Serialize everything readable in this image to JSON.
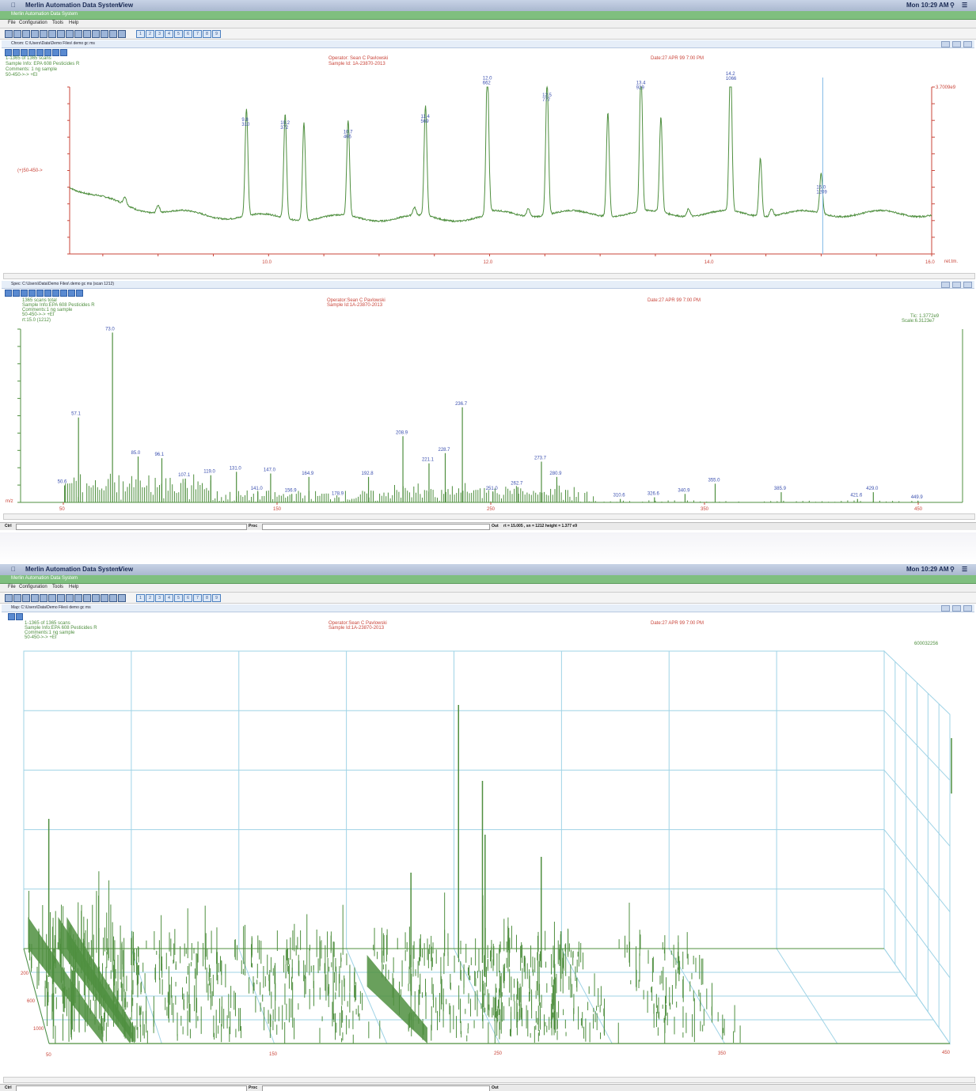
{
  "os_menubar": {
    "app_name": "Merlin Automation Data System",
    "menu_view": "View",
    "clock": "Mon 10:29 AM"
  },
  "app": {
    "title": "Merlin Automation Data System",
    "menus": [
      "File",
      "Configuration",
      "Tools",
      "Help"
    ],
    "toolbar_numbers": [
      "1",
      "2",
      "3",
      "4",
      "5",
      "6",
      "7",
      "8",
      "9"
    ]
  },
  "chrom_window": {
    "title": "Chrom: C:\\Users\\Data\\Demo Files\\ demo gc ms",
    "scans": "1-1365 of 1365 scans",
    "sample_info": "Sample Info: EPA 608 Pesticides R",
    "comments": "Comments: 1 ng sample",
    "range": "50-450->-> +EI",
    "operator": "Operator: Sean C Pavlowski",
    "sample_id": "Sample Id: 1A-23870-2013",
    "date": "Date:27 APR 99  7:00 PM",
    "y_label_left": "(+)50-450->",
    "y_label_right": "3.7009e9",
    "x_unit": "ret.tm."
  },
  "spec_window": {
    "title": "Spec: C:\\Users\\Data\\Demo Files\\ demo gc ms (scan 1212)",
    "scans": "1365 scans total",
    "sample_info": "Sample Info:EPA 608 Pesticides R",
    "comments": "Comments:1 ng sample",
    "range": "50-450->-> +EI",
    "rt": "rt:15.0 (1212)",
    "operator": "Operator:Sean C Pavlowski",
    "sample_id": "Sample Id:1A-23870-2013",
    "date": "Date:27 APR 99  7:00 PM",
    "tic": "Tic: 1.3772e9",
    "scale": "Scale:6.3123e7",
    "x_unit": "m/z"
  },
  "status_bar_1": {
    "ctrl": "Ctrl",
    "proc": "Proc",
    "out": "Out",
    "readout": "rt = 15.005 , sn = 1212 height = 1.377 e9"
  },
  "map_window": {
    "title": "Map: C:\\Users\\Data\\Demo Files\\ demo gc ms",
    "scans": "1-1365 of 1365 scans",
    "sample_info": "Sample Info:EPA 608 Pesticides R",
    "comments": "Comments:1 ng sample",
    "range": "50-450->-> +EI",
    "operator": "Operator:Sean C Pavlowski",
    "sample_id": "Sample Id:1A-23870-2013",
    "date": "Date:27 APR 99  7:00 PM",
    "z_max": "600032256",
    "y_ticks": [
      "200",
      "600",
      "1000"
    ],
    "x_ticks": [
      "50",
      "150",
      "250",
      "350",
      "450"
    ]
  },
  "status_bar_2": {
    "ctrl": "Ctrl",
    "proc": "Proc",
    "out": "Out"
  },
  "chart_data": [
    {
      "type": "line",
      "x_ticks": [
        "10.0",
        "12.0",
        "14.0",
        "16.0"
      ],
      "xlim": [
        8.2,
        16.0
      ],
      "peak_labels": [
        {
          "rt": "9.8",
          "scan": "310",
          "x": 9.8,
          "y": 0.7
        },
        {
          "rt": "10.2",
          "scan": "372",
          "x": 10.15,
          "y": 0.68
        },
        {
          "rt": "",
          "scan": "",
          "x": 10.32,
          "y": 0.64
        },
        {
          "rt": "10.7",
          "scan": "466",
          "x": 10.72,
          "y": 0.62
        },
        {
          "rt": "11.4",
          "scan": "569",
          "x": 11.42,
          "y": 0.72
        },
        {
          "rt": "12.0",
          "scan": "662",
          "x": 11.98,
          "y": 0.97
        },
        {
          "rt": "12.5",
          "scan": "777",
          "x": 12.52,
          "y": 0.86
        },
        {
          "rt": "",
          "scan": "",
          "x": 13.07,
          "y": 0.68
        },
        {
          "rt": "13.4",
          "scan": "929",
          "x": 13.37,
          "y": 0.94
        },
        {
          "rt": "",
          "scan": "",
          "x": 13.55,
          "y": 0.62
        },
        {
          "rt": "14.2",
          "scan": "1066",
          "x": 14.18,
          "y": 1.0
        },
        {
          "rt": "",
          "scan": "",
          "x": 14.45,
          "y": 0.38
        },
        {
          "rt": "15.0",
          "scan": "1209",
          "x": 15.0,
          "y": 0.26
        }
      ],
      "cursor_rt": 15.0
    },
    {
      "type": "bar",
      "x_ticks": [
        "50",
        "150",
        "250",
        "350",
        "450"
      ],
      "xlim": [
        50,
        455
      ],
      "labeled_peaks": [
        {
          "mz": 50.6,
          "label": "50.6",
          "rel": 0.1
        },
        {
          "mz": 57.1,
          "label": "57.1",
          "rel": 0.5
        },
        {
          "mz": 73.0,
          "label": "73.0",
          "rel": 1.0
        },
        {
          "mz": 85.0,
          "label": "85.0",
          "rel": 0.27
        },
        {
          "mz": 96.1,
          "label": "96.1",
          "rel": 0.26
        },
        {
          "mz": 107.1,
          "label": "107.1",
          "rel": 0.14
        },
        {
          "mz": 119.0,
          "label": "119.0",
          "rel": 0.16
        },
        {
          "mz": 131.0,
          "label": "131.0",
          "rel": 0.18
        },
        {
          "mz": 141.0,
          "label": "141.0",
          "rel": 0.06
        },
        {
          "mz": 147.0,
          "label": "147.0",
          "rel": 0.17
        },
        {
          "mz": 156.9,
          "label": "156.9",
          "rel": 0.05
        },
        {
          "mz": 164.9,
          "label": "164.9",
          "rel": 0.15
        },
        {
          "mz": 178.9,
          "label": "178.9",
          "rel": 0.03
        },
        {
          "mz": 192.8,
          "label": "192.8",
          "rel": 0.15
        },
        {
          "mz": 208.9,
          "label": "208.9",
          "rel": 0.39
        },
        {
          "mz": 221.1,
          "label": "221.1",
          "rel": 0.23
        },
        {
          "mz": 228.7,
          "label": "228.7",
          "rel": 0.29
        },
        {
          "mz": 236.7,
          "label": "236.7",
          "rel": 0.56
        },
        {
          "mz": 251.0,
          "label": "251.0",
          "rel": 0.06
        },
        {
          "mz": 262.7,
          "label": "262.7",
          "rel": 0.09
        },
        {
          "mz": 273.7,
          "label": "273.7",
          "rel": 0.24
        },
        {
          "mz": 280.9,
          "label": "280.9",
          "rel": 0.15
        },
        {
          "mz": 310.6,
          "label": "310.6",
          "rel": 0.02
        },
        {
          "mz": 326.6,
          "label": "326.6",
          "rel": 0.03
        },
        {
          "mz": 340.9,
          "label": "340.9",
          "rel": 0.05
        },
        {
          "mz": 355.0,
          "label": "355.0",
          "rel": 0.11
        },
        {
          "mz": 385.9,
          "label": "385.9",
          "rel": 0.06
        },
        {
          "mz": 421.6,
          "label": "421.6",
          "rel": 0.02
        },
        {
          "mz": 429.0,
          "label": "429.0",
          "rel": 0.06
        },
        {
          "mz": 449.9,
          "label": "449.9",
          "rel": 0.01
        }
      ]
    }
  ],
  "colors": {
    "trace": "#4f8f3f",
    "axis": "#c9453a",
    "label": "#3a4faf",
    "grid": "#9fd3e6",
    "cursor": "#7fb9e6"
  }
}
